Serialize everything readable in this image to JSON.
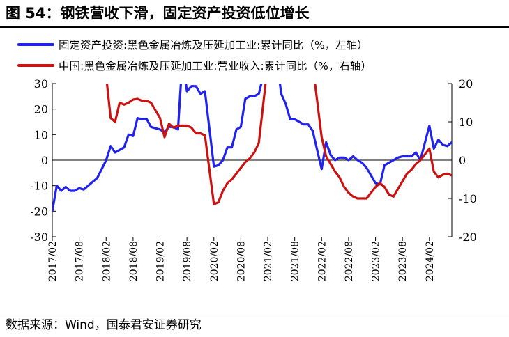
{
  "title": "图 54：钢铁营收下滑，固定资产投资低位增长",
  "source": "数据来源：Wind，国泰君安证券研究",
  "colors": {
    "blue": "#2222EE",
    "red": "#CC1111",
    "axis": "#000000"
  },
  "chart_data": {
    "type": "line",
    "left_axis": {
      "ylim": [
        -30,
        30
      ],
      "ticks": [
        -30,
        -20,
        -10,
        0,
        10,
        20,
        30
      ],
      "tick_labels": [
        "-30",
        "-20",
        "-10",
        "0",
        "10",
        "20",
        "30"
      ]
    },
    "right_axis": {
      "ylim": [
        -20,
        20
      ],
      "ticks": [
        -20,
        -10,
        0,
        10,
        20
      ],
      "tick_labels": [
        "-20",
        "-10",
        "0",
        "10",
        "20"
      ]
    },
    "x_tick_labels": [
      "2017/02",
      "2017/08",
      "2018/02",
      "2018/08",
      "2019/02",
      "2019/08",
      "2020/02",
      "2020/08",
      "2021/02",
      "2021/08",
      "2022/02",
      "2022/08",
      "2023/02",
      "2023/08",
      "2024/02"
    ],
    "series": [
      {
        "name": "固定资产投资:黑色金属冶炼及压延加工业:累计同比（%，左轴）",
        "axis": "left",
        "color": "#2222EE",
        "points": [
          [
            "2017-02",
            -20
          ],
          [
            "2017-03",
            -10
          ],
          [
            "2017-04",
            -12
          ],
          [
            "2017-05",
            -10.5
          ],
          [
            "2017-06",
            -12
          ],
          [
            "2017-07",
            -12
          ],
          [
            "2017-08",
            -11
          ],
          [
            "2017-09",
            -11.5
          ],
          [
            "2017-10",
            -10
          ],
          [
            "2017-11",
            -8.5
          ],
          [
            "2017-12",
            -7
          ],
          [
            "2018-02",
            0
          ],
          [
            "2018-03",
            5.5
          ],
          [
            "2018-04",
            3
          ],
          [
            "2018-05",
            4
          ],
          [
            "2018-06",
            5
          ],
          [
            "2018-07",
            10
          ],
          [
            "2018-08",
            9.5
          ],
          [
            "2018-09",
            16.5
          ],
          [
            "2018-10",
            16
          ],
          [
            "2018-11",
            16.2
          ],
          [
            "2018-12",
            13
          ],
          [
            "2019-02",
            12
          ],
          [
            "2019-03",
            11
          ],
          [
            "2019-04",
            13
          ],
          [
            "2019-05",
            13
          ],
          [
            "2019-06",
            12
          ],
          [
            "2019-07",
            40
          ],
          [
            "2019-08",
            27
          ],
          [
            "2019-09",
            29
          ],
          [
            "2019-10",
            29
          ],
          [
            "2019-11",
            26
          ],
          [
            "2019-12",
            27
          ],
          [
            "2020-02",
            -2.5
          ],
          [
            "2020-03",
            -2
          ],
          [
            "2020-04",
            0
          ],
          [
            "2020-05",
            5
          ],
          [
            "2020-06",
            5
          ],
          [
            "2020-07",
            12
          ],
          [
            "2020-08",
            13
          ],
          [
            "2020-09",
            24
          ],
          [
            "2020-10",
            25
          ],
          [
            "2020-11",
            25
          ],
          [
            "2020-12",
            26
          ],
          [
            "2021-02",
            40
          ],
          [
            "2021-04",
            40
          ],
          [
            "2021-05",
            26
          ],
          [
            "2021-06",
            22
          ],
          [
            "2021-07",
            16
          ],
          [
            "2021-08",
            16
          ],
          [
            "2021-09",
            15
          ],
          [
            "2021-10",
            14
          ],
          [
            "2021-11",
            14
          ],
          [
            "2021-12",
            11.5
          ],
          [
            "2022-02",
            -3.5
          ],
          [
            "2022-03",
            7
          ],
          [
            "2022-04",
            2
          ],
          [
            "2022-05",
            0
          ],
          [
            "2022-06",
            1
          ],
          [
            "2022-07",
            1
          ],
          [
            "2022-08",
            0
          ],
          [
            "2022-09",
            1.5
          ],
          [
            "2022-10",
            0
          ],
          [
            "2022-11",
            -1
          ],
          [
            "2022-12",
            -3
          ],
          [
            "2023-02",
            -9
          ],
          [
            "2023-03",
            -9.5
          ],
          [
            "2023-04",
            -2
          ],
          [
            "2023-05",
            -1
          ],
          [
            "2023-06",
            0
          ],
          [
            "2023-07",
            1
          ],
          [
            "2023-08",
            1.5
          ],
          [
            "2023-09",
            1.5
          ],
          [
            "2023-10",
            1.5
          ],
          [
            "2023-11",
            3
          ],
          [
            "2023-12",
            0
          ],
          [
            "2024-02",
            13.5
          ],
          [
            "2024-03",
            4.5
          ],
          [
            "2024-04",
            8
          ],
          [
            "2024-05",
            6
          ],
          [
            "2024-06",
            5.5
          ],
          [
            "2024-07",
            7
          ]
        ]
      },
      {
        "name": "中国:黑色金属冶炼及压延加工业:营业收入:累计同比（%，右轴）",
        "axis": "right",
        "color": "#CC1111",
        "points": [
          [
            "2018-02",
            22
          ],
          [
            "2018-03",
            11
          ],
          [
            "2018-04",
            10
          ],
          [
            "2018-05",
            15
          ],
          [
            "2018-06",
            14.5
          ],
          [
            "2018-07",
            15
          ],
          [
            "2018-08",
            15.8
          ],
          [
            "2018-09",
            16
          ],
          [
            "2018-10",
            15.5
          ],
          [
            "2018-11",
            15.5
          ],
          [
            "2018-12",
            15
          ],
          [
            "2019-02",
            11
          ],
          [
            "2019-03",
            6
          ],
          [
            "2019-04",
            9.5
          ],
          [
            "2019-05",
            8.5
          ],
          [
            "2019-06",
            9
          ],
          [
            "2019-07",
            9
          ],
          [
            "2019-08",
            9
          ],
          [
            "2019-09",
            8.5
          ],
          [
            "2019-10",
            7
          ],
          [
            "2019-11",
            7
          ],
          [
            "2019-12",
            6.5
          ],
          [
            "2020-02",
            -11.5
          ],
          [
            "2020-03",
            -11
          ],
          [
            "2020-04",
            -8
          ],
          [
            "2020-05",
            -6
          ],
          [
            "2020-06",
            -5
          ],
          [
            "2020-07",
            -3.5
          ],
          [
            "2020-08",
            -2
          ],
          [
            "2020-09",
            -0.5
          ],
          [
            "2020-10",
            0.5
          ],
          [
            "2020-11",
            2
          ],
          [
            "2020-12",
            4.5
          ],
          [
            "2021-02",
            25
          ],
          [
            "2021-12",
            25
          ],
          [
            "2022-02",
            6
          ],
          [
            "2022-03",
            1
          ],
          [
            "2022-04",
            -1
          ],
          [
            "2022-05",
            -3
          ],
          [
            "2022-06",
            -4.5
          ],
          [
            "2022-07",
            -7
          ],
          [
            "2022-08",
            -8.5
          ],
          [
            "2022-09",
            -9.5
          ],
          [
            "2022-10",
            -10
          ],
          [
            "2022-11",
            -10
          ],
          [
            "2022-12",
            -10
          ],
          [
            "2023-02",
            -7
          ],
          [
            "2023-03",
            -6
          ],
          [
            "2023-04",
            -7
          ],
          [
            "2023-05",
            -9
          ],
          [
            "2023-06",
            -9.5
          ],
          [
            "2023-07",
            -7.5
          ],
          [
            "2023-08",
            -5.5
          ],
          [
            "2023-09",
            -3.5
          ],
          [
            "2023-10",
            -2.5
          ],
          [
            "2023-11",
            -1
          ],
          [
            "2023-12",
            0
          ],
          [
            "2024-02",
            3
          ],
          [
            "2024-03",
            -3
          ],
          [
            "2024-04",
            -4.5
          ],
          [
            "2024-05",
            -3.8
          ],
          [
            "2024-06",
            -3.5
          ],
          [
            "2024-07",
            -4
          ]
        ]
      }
    ],
    "legend_placement": "top",
    "grid": false
  }
}
